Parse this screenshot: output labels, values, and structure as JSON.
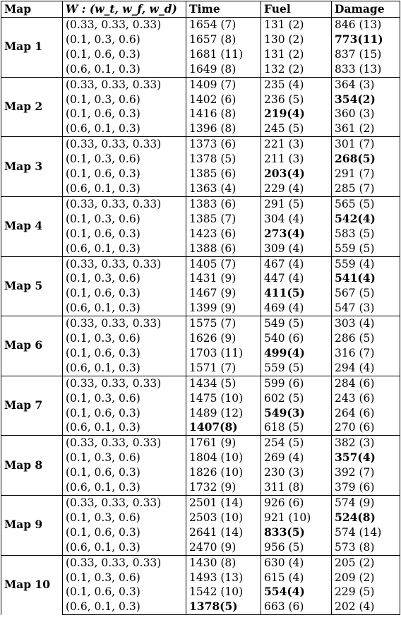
{
  "header": {
    "map": "Map",
    "weights": "W : (w_t, w_f, w_d)",
    "time": "Time",
    "fuel": "Fuel",
    "damage": "Damage"
  },
  "groups": [
    {
      "name": "Map 1",
      "rows": [
        {
          "w": "(0.33, 0.33, 0.33)",
          "time": "1654 (7)",
          "fuel": "131 (2)",
          "damage": "846 (13)",
          "best": ""
        },
        {
          "w": "(0.1, 0.3, 0.6)",
          "time": "1657 (8)",
          "fuel": "130 (2)",
          "damage": "773(11)",
          "best": "damage"
        },
        {
          "w": "(0.1, 0.6, 0.3)",
          "time": "1681 (11)",
          "fuel": "131 (2)",
          "damage": "837 (15)",
          "best": ""
        },
        {
          "w": "(0.6, 0.1, 0.3)",
          "time": "1649 (8)",
          "fuel": "132 (2)",
          "damage": "833 (13)",
          "best": ""
        }
      ]
    },
    {
      "name": "Map 2",
      "rows": [
        {
          "w": "(0.33, 0.33, 0.33)",
          "time": "1409 (7)",
          "fuel": "235 (4)",
          "damage": "364 (3)",
          "best": ""
        },
        {
          "w": "(0.1, 0.3, 0.6)",
          "time": "1402 (6)",
          "fuel": "236 (5)",
          "damage": "354(2)",
          "best": "damage"
        },
        {
          "w": "(0.1, 0.6, 0.3)",
          "time": "1416 (8)",
          "fuel": "219(4)",
          "damage": "360 (3)",
          "best": "fuel"
        },
        {
          "w": "(0.6, 0.1, 0.3)",
          "time": "1396 (8)",
          "fuel": "245 (5)",
          "damage": "361 (2)",
          "best": ""
        }
      ]
    },
    {
      "name": "Map 3",
      "rows": [
        {
          "w": "(0.33, 0.33, 0.33)",
          "time": "1373 (6)",
          "fuel": "221 (3)",
          "damage": "301 (7)",
          "best": ""
        },
        {
          "w": "(0.1, 0.3, 0.6)",
          "time": "1378 (5)",
          "fuel": "211 (3)",
          "damage": "268(5)",
          "best": "damage"
        },
        {
          "w": "(0.1, 0.6, 0.3)",
          "time": "1385 (6)",
          "fuel": "203(4)",
          "damage": "291 (7)",
          "best": "fuel"
        },
        {
          "w": "(0.6, 0.1, 0.3)",
          "time": "1363 (4)",
          "fuel": "229 (4)",
          "damage": "285 (7)",
          "best": ""
        }
      ]
    },
    {
      "name": "Map 4",
      "rows": [
        {
          "w": "(0.33, 0.33, 0.33)",
          "time": "1383 (6)",
          "fuel": "291 (5)",
          "damage": "565 (5)",
          "best": ""
        },
        {
          "w": "(0.1, 0.3, 0.6)",
          "time": "1385 (7)",
          "fuel": "304 (4)",
          "damage": "542(4)",
          "best": "damage"
        },
        {
          "w": "(0.1, 0.6, 0.3)",
          "time": "1423 (6)",
          "fuel": "273(4)",
          "damage": "583 (5)",
          "best": "fuel"
        },
        {
          "w": "(0.6, 0.1, 0.3)",
          "time": "1388 (6)",
          "fuel": "309 (4)",
          "damage": "559 (5)",
          "best": ""
        }
      ]
    },
    {
      "name": "Map 5",
      "rows": [
        {
          "w": "(0.33, 0.33, 0.33)",
          "time": "1405 (7)",
          "fuel": "467 (4)",
          "damage": "559 (4)",
          "best": ""
        },
        {
          "w": "(0.1, 0.3, 0.6)",
          "time": "1431 (9)",
          "fuel": "447 (4)",
          "damage": "541(4)",
          "best": "damage"
        },
        {
          "w": "(0.1, 0.6, 0.3)",
          "time": "1467 (9)",
          "fuel": "411(5)",
          "damage": "567 (5)",
          "best": "fuel"
        },
        {
          "w": "(0.6, 0.1, 0.3)",
          "time": "1399 (9)",
          "fuel": "469 (4)",
          "damage": "547 (3)",
          "best": ""
        }
      ]
    },
    {
      "name": "Map 6",
      "rows": [
        {
          "w": "(0.33, 0.33, 0.33)",
          "time": "1575 (7)",
          "fuel": "549 (5)",
          "damage": "303 (4)",
          "best": ""
        },
        {
          "w": "(0.1, 0.3, 0.6)",
          "time": "1626 (9)",
          "fuel": "540 (6)",
          "damage": "286 (5)",
          "best": ""
        },
        {
          "w": "(0.1, 0.6, 0.3)",
          "time": "1703 (11)",
          "fuel": "499(4)",
          "damage": "316 (7)",
          "best": "fuel"
        },
        {
          "w": "(0.6, 0.1, 0.3)",
          "time": "1571 (7)",
          "fuel": "559 (5)",
          "damage": "294 (4)",
          "best": ""
        }
      ]
    },
    {
      "name": "Map 7",
      "rows": [
        {
          "w": "(0.33, 0.33, 0.33)",
          "time": "1434 (5)",
          "fuel": "599 (6)",
          "damage": "284 (6)",
          "best": ""
        },
        {
          "w": "(0.1, 0.3, 0.6)",
          "time": "1475 (10)",
          "fuel": "602 (5)",
          "damage": "243 (6)",
          "best": ""
        },
        {
          "w": "(0.1, 0.6, 0.3)",
          "time": "1489 (12)",
          "fuel": "549(3)",
          "damage": "264 (6)",
          "best": "fuel"
        },
        {
          "w": "(0.6, 0.1, 0.3)",
          "time": "1407(8)",
          "fuel": "618 (5)",
          "damage": "270 (6)",
          "best": "time"
        }
      ]
    },
    {
      "name": "Map 8",
      "rows": [
        {
          "w": "(0.33, 0.33, 0.33)",
          "time": "1761 (9)",
          "fuel": "254 (5)",
          "damage": "382 (3)",
          "best": ""
        },
        {
          "w": "(0.1, 0.3, 0.6)",
          "time": "1804 (10)",
          "fuel": "269 (4)",
          "damage": "357(4)",
          "best": "damage"
        },
        {
          "w": "(0.1, 0.6, 0.3)",
          "time": "1826 (10)",
          "fuel": "230 (3)",
          "damage": "392 (7)",
          "best": ""
        },
        {
          "w": "(0.6, 0.1, 0.3)",
          "time": "1732 (9)",
          "fuel": "311 (8)",
          "damage": "379 (6)",
          "best": ""
        }
      ]
    },
    {
      "name": "Map 9",
      "rows": [
        {
          "w": "(0.33, 0.33, 0.33)",
          "time": "2501 (14)",
          "fuel": "926 (6)",
          "damage": "574 (9)",
          "best": ""
        },
        {
          "w": "(0.1, 0.3, 0.6)",
          "time": "2503 (10)",
          "fuel": "921 (10)",
          "damage": "524(8)",
          "best": "damage"
        },
        {
          "w": "(0.1, 0.6, 0.3)",
          "time": "2641 (14)",
          "fuel": "833(5)",
          "damage": "574 (14)",
          "best": "fuel"
        },
        {
          "w": "(0.6, 0.1, 0.3)",
          "time": "2470 (9)",
          "fuel": "956 (5)",
          "damage": "573 (8)",
          "best": ""
        }
      ]
    },
    {
      "name": "Map 10",
      "rows": [
        {
          "w": "(0.33, 0.33, 0.33)",
          "time": "1430 (8)",
          "fuel": "630 (4)",
          "damage": "205 (2)",
          "best": ""
        },
        {
          "w": "(0.1, 0.3, 0.6)",
          "time": "1493 (13)",
          "fuel": "615 (4)",
          "damage": "209 (2)",
          "best": ""
        },
        {
          "w": "(0.1, 0.6, 0.3)",
          "time": "1542 (10)",
          "fuel": "554(4)",
          "damage": "229 (5)",
          "best": "fuel"
        },
        {
          "w": "(0.6, 0.1, 0.3)",
          "time": "1378(5)",
          "fuel": "663 (6)",
          "damage": "202 (4)",
          "best": "time"
        }
      ]
    }
  ]
}
